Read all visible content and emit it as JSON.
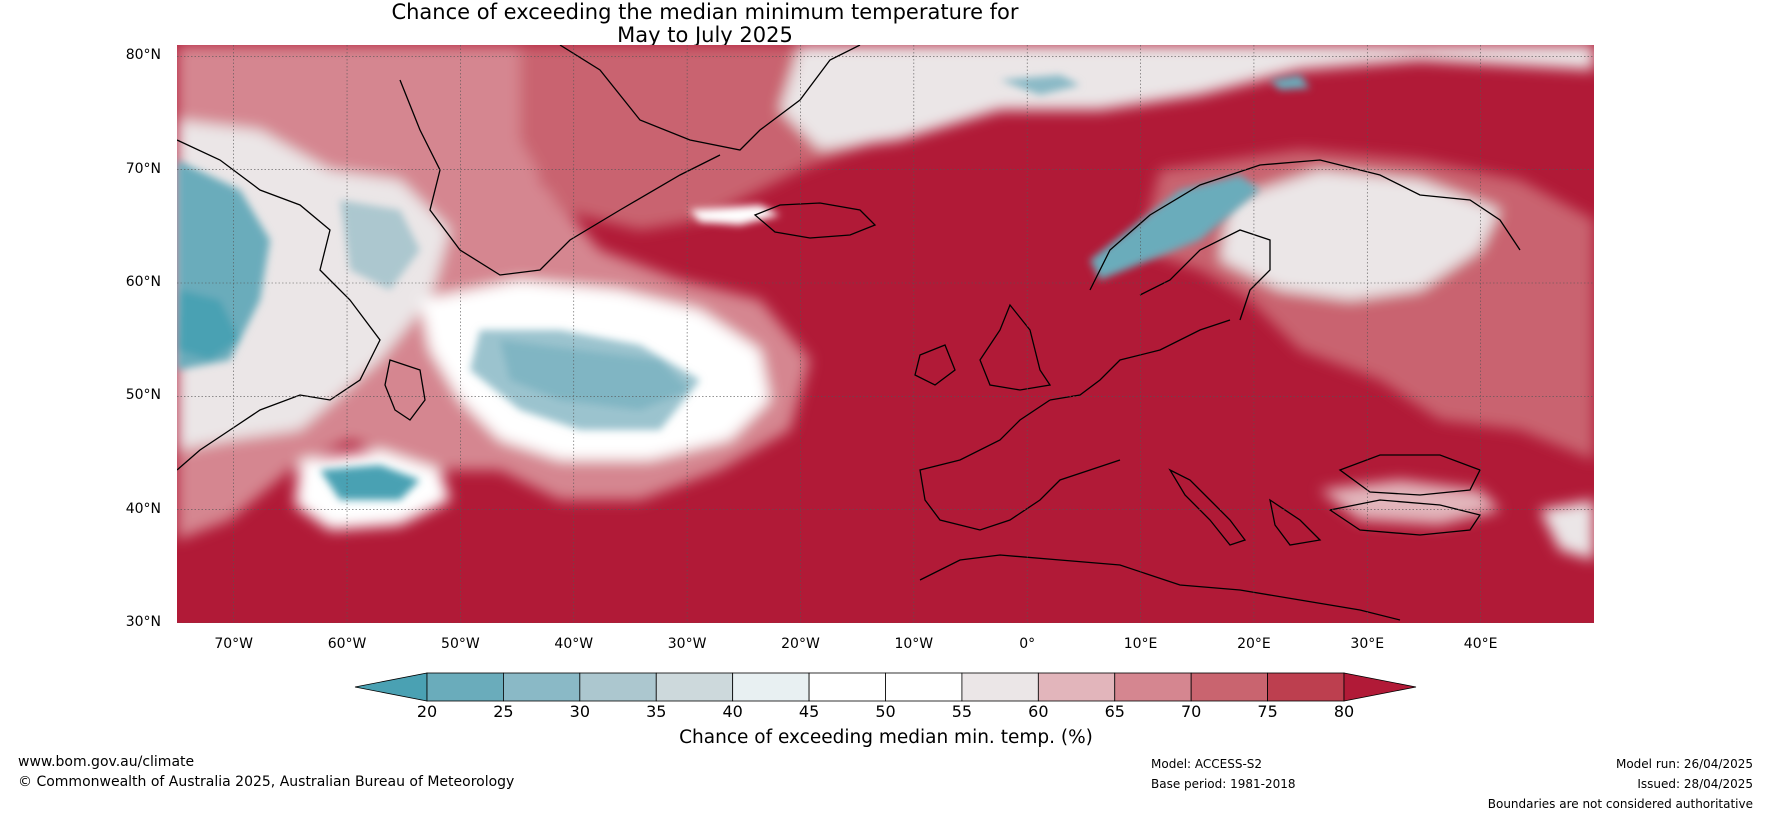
{
  "title": {
    "line1": "Chance of exceeding the median minimum temperature for",
    "line2": "May to July 2025"
  },
  "map": {
    "extent": {
      "lon_min": -75,
      "lon_max": 50,
      "lat_min": 30,
      "lat_max": 81
    },
    "lat_ticks": [
      {
        "value": 80,
        "label": "80°N"
      },
      {
        "value": 70,
        "label": "70°N"
      },
      {
        "value": 60,
        "label": "60°N"
      },
      {
        "value": 50,
        "label": "50°N"
      },
      {
        "value": 40,
        "label": "40°N"
      },
      {
        "value": 30,
        "label": "30°N"
      }
    ],
    "lon_ticks": [
      {
        "value": -70,
        "label": "70°W"
      },
      {
        "value": -60,
        "label": "60°W"
      },
      {
        "value": -50,
        "label": "50°W"
      },
      {
        "value": -40,
        "label": "40°W"
      },
      {
        "value": -30,
        "label": "30°W"
      },
      {
        "value": -20,
        "label": "20°W"
      },
      {
        "value": -10,
        "label": "10°W"
      },
      {
        "value": 0,
        "label": "0°"
      },
      {
        "value": 10,
        "label": "10°E"
      },
      {
        "value": 20,
        "label": "20°E"
      },
      {
        "value": 30,
        "label": "30°E"
      },
      {
        "value": 40,
        "label": "40°E"
      }
    ],
    "background_color": "#b11a37"
  },
  "colorbar": {
    "ticks": [
      "20",
      "25",
      "30",
      "35",
      "40",
      "45",
      "50",
      "55",
      "60",
      "65",
      "70",
      "75",
      "80"
    ],
    "colors": [
      "#4aa1b3",
      "#6aacbb",
      "#8ab9c6",
      "#acc7cf",
      "#cdd9dc",
      "#e8f0f2",
      "#ffffff",
      "#ffffff",
      "#ebe6e7",
      "#e2b5bb",
      "#d58690",
      "#c9646f",
      "#bd3f4f",
      "#b11a37"
    ],
    "label": "Chance of exceeding median min. temp. (%)"
  },
  "footer": {
    "website": "www.bom.gov.au/climate",
    "copyright": "© Commonwealth of Australia 2025, Australian Bureau of Meteorology",
    "model": "Model: ACCESS-S2",
    "base_period": "Base period: 1981-2018",
    "model_run": "Model run: 26/04/2025",
    "issued": "Issued: 28/04/2025",
    "disclaimer": "Boundaries are not considered authoritative"
  }
}
